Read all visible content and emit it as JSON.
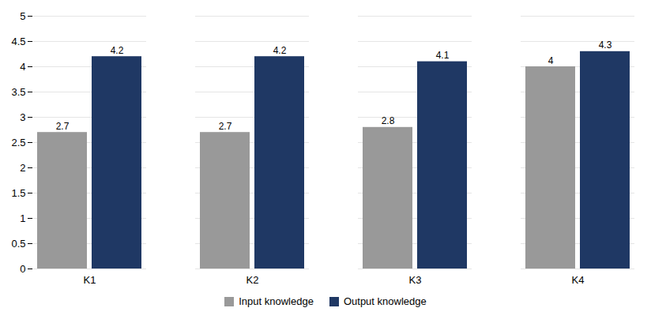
{
  "chart_data": {
    "type": "bar",
    "categories": [
      "K1",
      "K2",
      "K3",
      "K4"
    ],
    "series": [
      {
        "name": "Input knowledge",
        "color": "#999999",
        "values": [
          2.7,
          2.7,
          2.8,
          4.0
        ]
      },
      {
        "name": "Output knowledge",
        "color": "#1F3864",
        "values": [
          4.2,
          4.2,
          4.1,
          4.3
        ]
      }
    ],
    "ylim": [
      0,
      5
    ],
    "yticks": [
      0,
      0.5,
      1,
      1.5,
      2,
      2.5,
      3,
      3.5,
      4,
      4.5,
      5
    ],
    "grid": true,
    "legend": "bottom",
    "data_labels": true
  }
}
